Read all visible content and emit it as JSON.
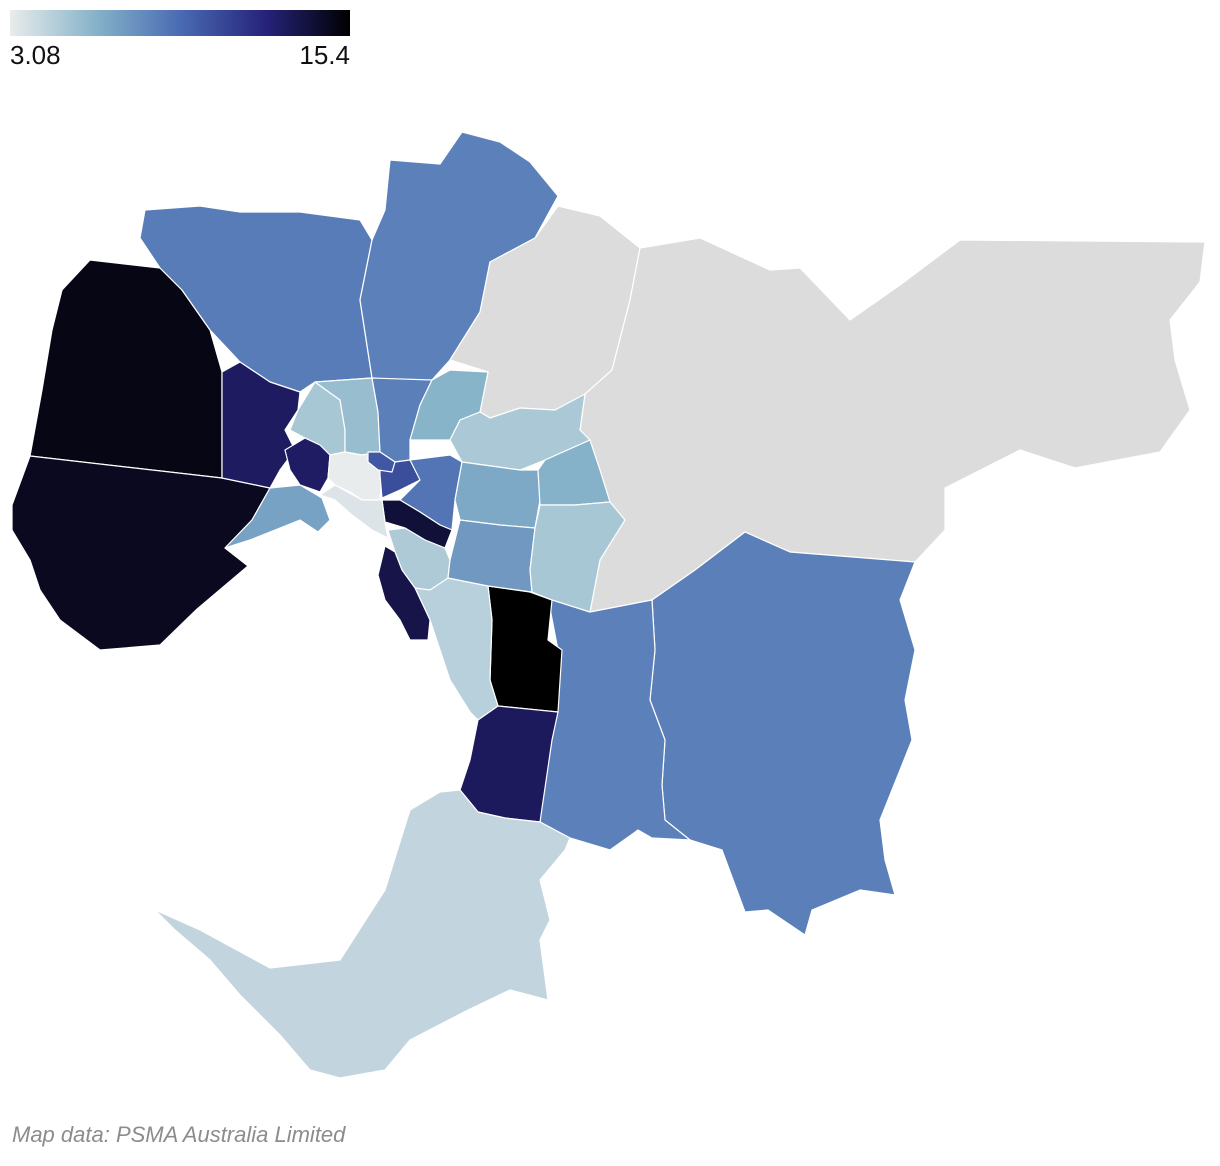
{
  "legend": {
    "min_label": "3.08",
    "max_label": "15.4",
    "min_value": 3.08,
    "max_value": 15.4,
    "ramp_colors": [
      "#e9ecec",
      "#86b3c9",
      "#4a6bb3",
      "#26237b",
      "#000000"
    ]
  },
  "colors": {
    "no_data": "#dcdcdc",
    "border": "#ffffff",
    "background": "#ffffff"
  },
  "credit": {
    "text": "Map data: PSMA Australia Limited"
  },
  "regions": [
    {
      "name": "melton",
      "value": 14.9
    },
    {
      "name": "wyndham",
      "value": 14.6
    },
    {
      "name": "hume",
      "value": 8.5
    },
    {
      "name": "whittlesea",
      "value": 8.3
    },
    {
      "name": "nillumbik",
      "value": null
    },
    {
      "name": "yarra-ranges",
      "value": null
    },
    {
      "name": "cardinia",
      "value": 8.4
    },
    {
      "name": "casey",
      "value": 8.3
    },
    {
      "name": "greater-dandenong",
      "value": 15.4
    },
    {
      "name": "kingston",
      "value": 4.6
    },
    {
      "name": "frankston",
      "value": 13.1
    },
    {
      "name": "mornington-peninsula",
      "value": 4.3
    },
    {
      "name": "brimbank",
      "value": 13.0
    },
    {
      "name": "hobsons-bay",
      "value": 6.9
    },
    {
      "name": "maribyrnong",
      "value": 12.9
    },
    {
      "name": "moonee-valley",
      "value": 5.1
    },
    {
      "name": "moreland",
      "value": 5.6
    },
    {
      "name": "darebin",
      "value": 8.4
    },
    {
      "name": "banyule",
      "value": 6.1
    },
    {
      "name": "manningham",
      "value": 5.0
    },
    {
      "name": "melbourne",
      "value": 3.1
    },
    {
      "name": "yarra",
      "value": 10.5
    },
    {
      "name": "boroondara",
      "value": 8.8
    },
    {
      "name": "stonnington",
      "value": 14.0
    },
    {
      "name": "port-phillip",
      "value": 3.5
    },
    {
      "name": "glen-eira",
      "value": 4.9
    },
    {
      "name": "bayside",
      "value": 13.6
    },
    {
      "name": "whitehorse",
      "value": 6.6
    },
    {
      "name": "maroondah",
      "value": 6.2
    },
    {
      "name": "monash",
      "value": 7.3
    },
    {
      "name": "knox",
      "value": 5.1
    },
    {
      "name": "yarra-inner",
      "value": 10.1
    }
  ]
}
